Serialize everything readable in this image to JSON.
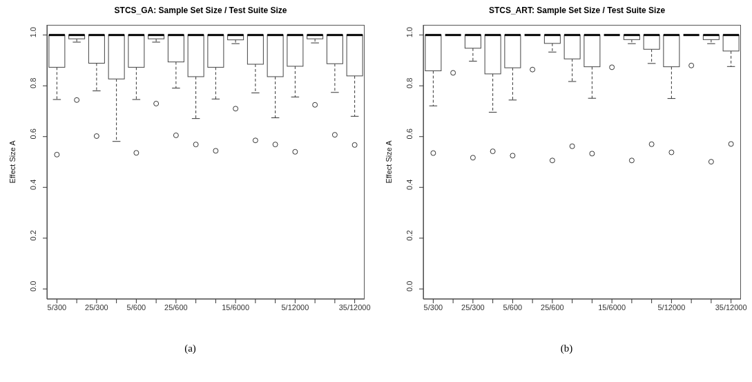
{
  "chart_data": [
    {
      "type": "box",
      "title": "STCS_GA: Sample Set Size / Test Suite Size",
      "ylabel": "Effect Size A",
      "annotations": [
        "(a)"
      ],
      "categories": [
        "5/300",
        null,
        "25/300",
        null,
        "5/600",
        null,
        "25/600",
        null,
        null,
        "15/6000",
        null,
        null,
        "5/12000",
        null,
        null,
        "35/12000"
      ],
      "ylim": [
        -0.04,
        1.04
      ],
      "yticks": [
        {
          "value": 0,
          "label": "0.0"
        },
        {
          "value": 0.2,
          "label": "0.2"
        },
        {
          "value": 0.4,
          "label": "0.4"
        },
        {
          "value": 0.6,
          "label": "0.6"
        },
        {
          "value": 0.8,
          "label": "0.8"
        },
        {
          "value": 1,
          "label": "1.0"
        }
      ],
      "boxes": [
        {
          "low": 0.746,
          "q1": 0.873,
          "median": 1,
          "q3": 1,
          "high": 1,
          "outliers": [
            0.529
          ]
        },
        {
          "low": 0.972,
          "q1": 0.985,
          "median": 1,
          "q3": 1,
          "high": 1,
          "outliers": [
            0.744
          ]
        },
        {
          "low": 0.78,
          "q1": 0.889,
          "median": 1,
          "q3": 1,
          "high": 1,
          "outliers": [
            0.602
          ]
        },
        {
          "low": 0.581,
          "q1": 0.827,
          "median": 1,
          "q3": 1,
          "high": 1
        },
        {
          "low": 0.746,
          "q1": 0.873,
          "median": 1,
          "q3": 1,
          "high": 1,
          "outliers": [
            0.536
          ]
        },
        {
          "low": 0.972,
          "q1": 0.985,
          "median": 1,
          "q3": 1,
          "high": 1,
          "outliers": [
            0.73
          ]
        },
        {
          "low": 0.791,
          "q1": 0.894,
          "median": 1,
          "q3": 1,
          "high": 1,
          "outliers": [
            0.605
          ]
        },
        {
          "low": 0.671,
          "q1": 0.836,
          "median": 1,
          "q3": 1,
          "high": 1,
          "outliers": [
            0.569
          ]
        },
        {
          "low": 0.748,
          "q1": 0.873,
          "median": 1,
          "q3": 1,
          "high": 1,
          "outliers": [
            0.544
          ]
        },
        {
          "low": 0.966,
          "q1": 0.981,
          "median": 1,
          "q3": 1,
          "high": 1,
          "outliers": [
            0.71
          ]
        },
        {
          "low": 0.772,
          "q1": 0.885,
          "median": 1,
          "q3": 1,
          "high": 1,
          "outliers": [
            0.585
          ]
        },
        {
          "low": 0.674,
          "q1": 0.836,
          "median": 1,
          "q3": 1,
          "high": 1,
          "outliers": [
            0.569
          ]
        },
        {
          "low": 0.756,
          "q1": 0.877,
          "median": 1,
          "q3": 1,
          "high": 1,
          "outliers": [
            0.54
          ]
        },
        {
          "low": 0.969,
          "q1": 0.985,
          "median": 1,
          "q3": 1,
          "high": 1,
          "outliers": [
            0.725
          ]
        },
        {
          "low": 0.774,
          "q1": 0.887,
          "median": 1,
          "q3": 1,
          "high": 1,
          "outliers": [
            0.607
          ]
        },
        {
          "low": 0.68,
          "q1": 0.839,
          "median": 1,
          "q3": 1,
          "high": 1,
          "outliers": [
            0.567
          ]
        }
      ]
    },
    {
      "type": "box",
      "title": "STCS_ART: Sample Set Size / Test Suite Size",
      "ylabel": "Effect Size A",
      "annotations": [
        "(b)"
      ],
      "categories": [
        "5/300",
        null,
        "25/300",
        null,
        "5/600",
        null,
        "25/600",
        null,
        null,
        "15/6000",
        null,
        null,
        "5/12000",
        null,
        null,
        "35/12000"
      ],
      "ylim": [
        -0.04,
        1.04
      ],
      "yticks": [
        {
          "value": 0,
          "label": "0.0"
        },
        {
          "value": 0.2,
          "label": "0.2"
        },
        {
          "value": 0.4,
          "label": "0.4"
        },
        {
          "value": 0.6,
          "label": "0.6"
        },
        {
          "value": 0.8,
          "label": "0.8"
        },
        {
          "value": 1,
          "label": "1.0"
        }
      ],
      "boxes": [
        {
          "low": 0.721,
          "q1": 0.859,
          "median": 1,
          "q3": 1,
          "high": 1,
          "outliers": [
            0.535
          ]
        },
        {
          "low": 1,
          "q1": 1,
          "median": 1,
          "q3": 1,
          "high": 1,
          "outliers": [
            0.851
          ]
        },
        {
          "low": 0.897,
          "q1": 0.948,
          "median": 1,
          "q3": 1,
          "high": 1,
          "outliers": [
            0.517
          ]
        },
        {
          "low": 0.696,
          "q1": 0.847,
          "median": 1,
          "q3": 1,
          "high": 1,
          "outliers": [
            0.542
          ]
        },
        {
          "low": 0.744,
          "q1": 0.871,
          "median": 1,
          "q3": 1,
          "high": 1,
          "outliers": [
            0.525
          ]
        },
        {
          "low": 1,
          "q1": 1,
          "median": 1,
          "q3": 1,
          "high": 1,
          "outliers": [
            0.864
          ]
        },
        {
          "low": 0.933,
          "q1": 0.967,
          "median": 1,
          "q3": 1,
          "high": 1,
          "outliers": [
            0.506
          ]
        },
        {
          "low": 0.817,
          "q1": 0.906,
          "median": 1,
          "q3": 1,
          "high": 1,
          "outliers": [
            0.562
          ]
        },
        {
          "low": 0.751,
          "q1": 0.875,
          "median": 1,
          "q3": 1,
          "high": 1,
          "outliers": [
            0.533
          ]
        },
        {
          "low": 1,
          "q1": 1,
          "median": 1,
          "q3": 1,
          "high": 1,
          "outliers": [
            0.873
          ]
        },
        {
          "low": 0.966,
          "q1": 0.982,
          "median": 1,
          "q3": 1,
          "high": 1,
          "outliers": [
            0.506
          ]
        },
        {
          "low": 0.888,
          "q1": 0.944,
          "median": 1,
          "q3": 1,
          "high": 1,
          "outliers": [
            0.57
          ]
        },
        {
          "low": 0.75,
          "q1": 0.875,
          "median": 1,
          "q3": 1,
          "high": 1,
          "outliers": [
            0.538
          ]
        },
        {
          "low": 1,
          "q1": 1,
          "median": 1,
          "q3": 1,
          "high": 1,
          "outliers": [
            0.88
          ]
        },
        {
          "low": 0.966,
          "q1": 0.982,
          "median": 1,
          "q3": 1,
          "high": 1,
          "outliers": [
            0.501
          ]
        },
        {
          "low": 0.876,
          "q1": 0.937,
          "median": 1,
          "q3": 1,
          "high": 1,
          "outliers": [
            0.571
          ]
        }
      ]
    }
  ]
}
